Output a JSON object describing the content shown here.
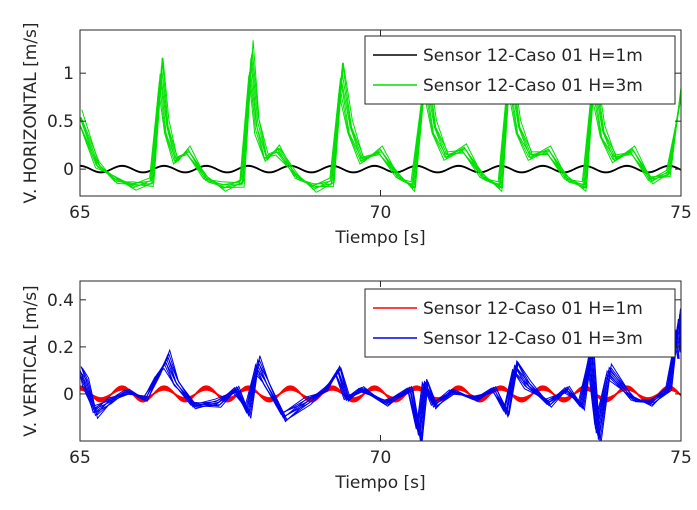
{
  "chart_data": [
    {
      "type": "line",
      "xlabel": "Tiempo [s]",
      "ylabel": "V. HORIZONTAL [m/s]",
      "xlim": [
        65,
        75
      ],
      "ylim": [
        -0.28,
        1.45
      ],
      "xticks": [
        "65",
        "70",
        "75"
      ],
      "yticks": [
        "0",
        "0.5",
        "1"
      ],
      "xtick_values": [
        65,
        70,
        75
      ],
      "ytick_values": [
        0,
        0.5,
        1
      ],
      "legend_position": "top-right",
      "series": [
        {
          "name": "Sensor 12-Caso 01 H=1m",
          "color": "#000000",
          "period_s": 0.7,
          "amplitude": 0.04,
          "offset": 0.0,
          "x": [
            65.0,
            65.35,
            65.7,
            66.05,
            66.4,
            66.75,
            67.1,
            67.45,
            67.8,
            68.15,
            68.5,
            68.85,
            69.2,
            69.55,
            69.9,
            70.25,
            70.6,
            70.95,
            71.3,
            71.65,
            72.0,
            72.35,
            72.7,
            73.05,
            73.4,
            73.75,
            74.1,
            74.45,
            74.8,
            75.0
          ],
          "y": [
            0.04,
            -0.04,
            0.04,
            -0.04,
            0.04,
            -0.04,
            0.04,
            -0.04,
            0.04,
            -0.04,
            0.04,
            -0.04,
            0.04,
            -0.04,
            0.04,
            -0.04,
            0.04,
            -0.04,
            0.04,
            -0.04,
            0.04,
            -0.04,
            0.04,
            -0.04,
            0.04,
            -0.04,
            0.04,
            -0.04,
            0.04,
            0.0
          ]
        },
        {
          "name": "Sensor 12-Caso 01 H=3m",
          "color": "#00e000",
          "x": [
            65.0,
            65.3,
            65.6,
            65.9,
            66.2,
            66.35,
            66.45,
            66.6,
            66.8,
            67.1,
            67.4,
            67.7,
            67.85,
            67.95,
            68.1,
            68.3,
            68.6,
            68.9,
            69.2,
            69.35,
            69.5,
            69.7,
            70.0,
            70.3,
            70.55,
            70.75,
            70.9,
            71.1,
            71.4,
            71.7,
            72.0,
            72.15,
            72.3,
            72.5,
            72.8,
            73.1,
            73.4,
            73.55,
            73.7,
            73.9,
            74.2,
            74.5,
            74.8,
            75.0
          ],
          "y": [
            0.55,
            0.05,
            -0.12,
            -0.18,
            -0.15,
            1.1,
            0.45,
            0.1,
            0.2,
            -0.1,
            -0.2,
            -0.15,
            1.22,
            0.5,
            0.12,
            0.22,
            -0.08,
            -0.2,
            -0.15,
            1.05,
            0.45,
            0.1,
            0.2,
            -0.08,
            -0.2,
            1.1,
            0.45,
            0.15,
            0.22,
            -0.08,
            -0.2,
            1.15,
            0.45,
            0.15,
            0.2,
            -0.1,
            -0.2,
            1.05,
            0.4,
            0.12,
            0.2,
            -0.12,
            -0.05,
            0.8
          ]
        }
      ]
    },
    {
      "type": "line",
      "xlabel": "Tiempo [s]",
      "ylabel": "V. VERTICAL [m/s]",
      "xlim": [
        65,
        75
      ],
      "ylim": [
        -0.2,
        0.48
      ],
      "xticks": [
        "65",
        "70",
        "75"
      ],
      "yticks": [
        "0",
        "0.2",
        "0.4"
      ],
      "xtick_values": [
        65,
        70,
        75
      ],
      "ytick_values": [
        0,
        0.2,
        0.4
      ],
      "legend_position": "top-right",
      "series": [
        {
          "name": "Sensor 12-Caso 01 H=1m",
          "color": "#ff0000",
          "period_s": 0.7,
          "amplitude": 0.025,
          "offset": 0.0,
          "x": [
            65.0,
            65.35,
            65.7,
            66.05,
            66.4,
            66.75,
            67.1,
            67.45,
            67.8,
            68.15,
            68.5,
            68.85,
            69.2,
            69.55,
            69.9,
            70.25,
            70.6,
            70.95,
            71.3,
            71.65,
            72.0,
            72.35,
            72.7,
            73.05,
            73.4,
            73.75,
            74.1,
            74.45,
            74.8,
            75.0
          ],
          "y": [
            -0.02,
            0.02,
            -0.025,
            0.025,
            -0.025,
            0.025,
            -0.025,
            0.025,
            -0.025,
            0.025,
            -0.025,
            0.025,
            -0.025,
            0.025,
            -0.025,
            0.025,
            -0.025,
            0.025,
            -0.025,
            0.025,
            -0.025,
            0.025,
            -0.025,
            0.025,
            -0.025,
            0.025,
            -0.025,
            0.025,
            -0.025,
            0.0
          ]
        },
        {
          "name": "Sensor 12-Caso 01 H=3m",
          "color": "#0000ee",
          "x": [
            65.0,
            65.1,
            65.25,
            65.5,
            65.8,
            66.1,
            66.3,
            66.45,
            66.6,
            66.9,
            67.3,
            67.6,
            67.8,
            67.95,
            68.1,
            68.4,
            68.8,
            69.1,
            69.3,
            69.45,
            69.7,
            70.1,
            70.5,
            70.65,
            70.75,
            70.9,
            71.2,
            71.6,
            71.9,
            72.1,
            72.25,
            72.45,
            72.8,
            73.1,
            73.35,
            73.5,
            73.62,
            73.8,
            74.2,
            74.5,
            74.8,
            74.95,
            75.0
          ],
          "y": [
            0.1,
            0.05,
            -0.08,
            -0.03,
            0.01,
            -0.02,
            0.08,
            0.15,
            0.05,
            -0.05,
            -0.04,
            0.02,
            -0.08,
            0.13,
            0.05,
            -0.1,
            -0.03,
            0.02,
            0.1,
            -0.02,
            0.02,
            -0.04,
            0.02,
            -0.18,
            0.05,
            -0.05,
            0.01,
            -0.02,
            0.02,
            -0.08,
            0.12,
            0.04,
            -0.04,
            0.02,
            -0.05,
            0.18,
            -0.18,
            0.1,
            -0.02,
            -0.04,
            0.02,
            0.3,
            0.18
          ]
        }
      ]
    }
  ]
}
